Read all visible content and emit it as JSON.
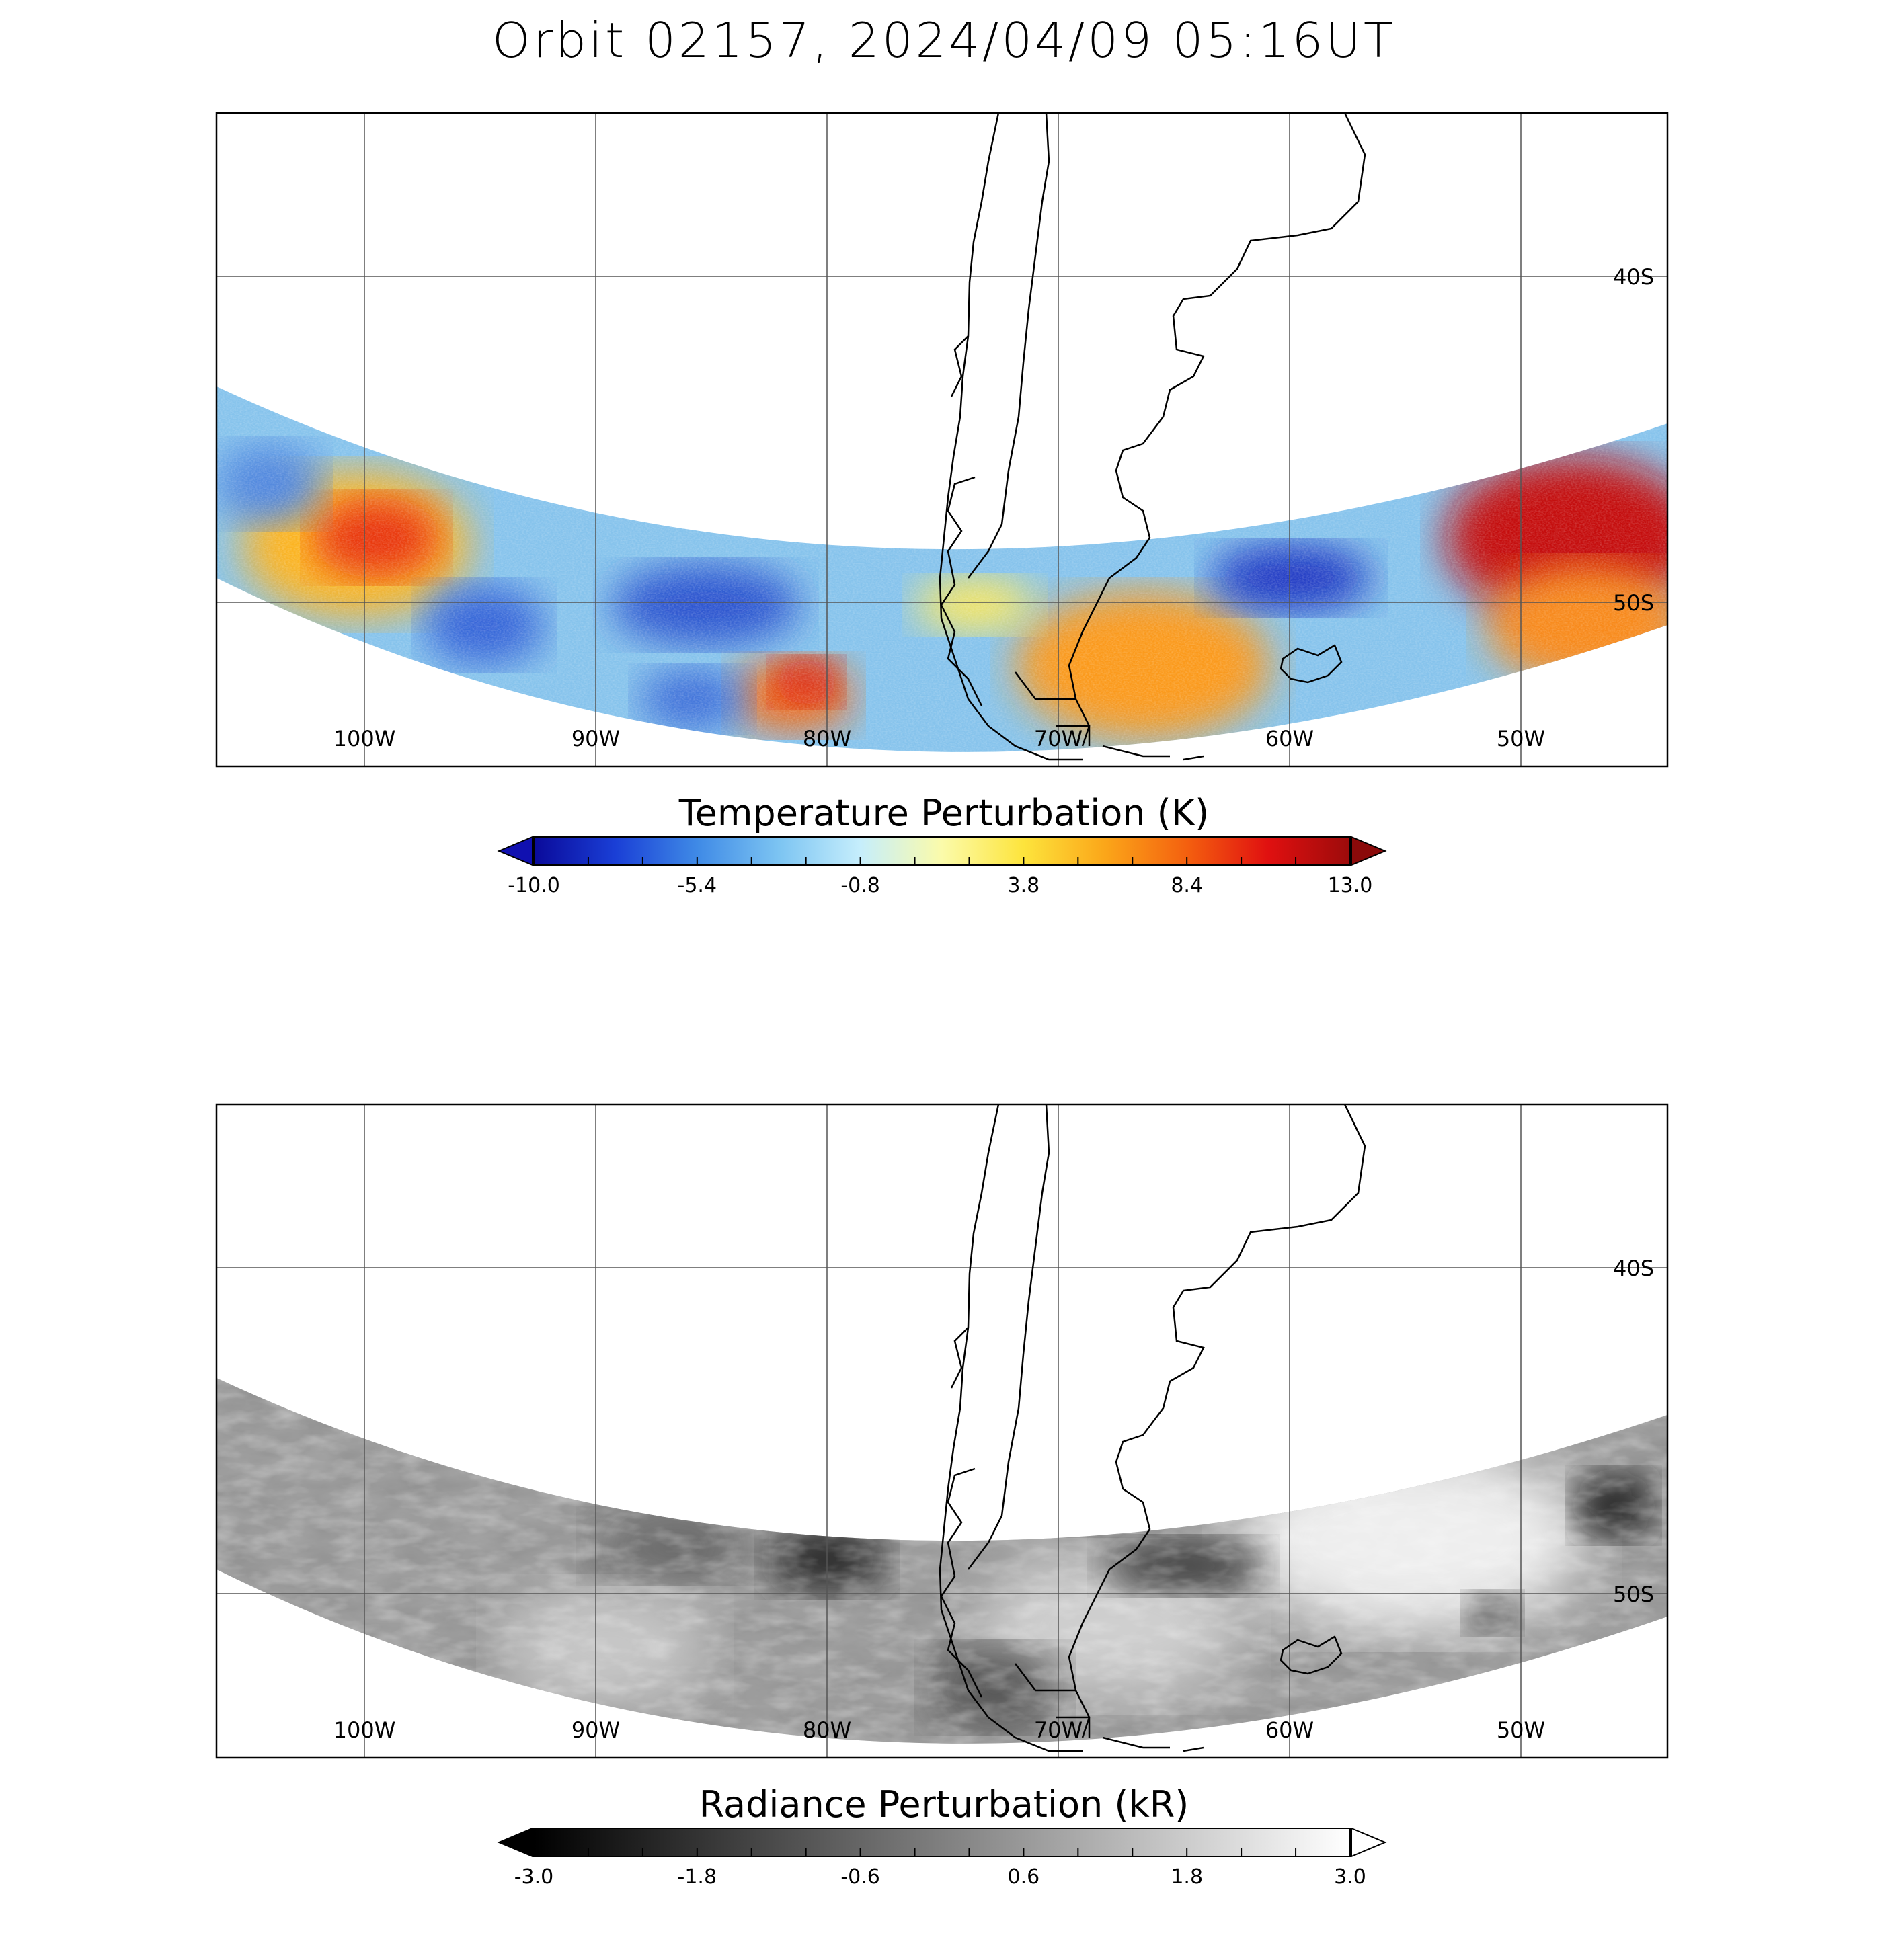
{
  "title": "Orbit 02157, 2024/04/09 05:16UT",
  "panels": [
    {
      "id": "temperature",
      "lon_labels": [
        "100W",
        "90W",
        "80W",
        "70W",
        "60W",
        "50W"
      ],
      "lat_labels": [
        "40S",
        "50S"
      ],
      "colorbar": {
        "title": "Temperature Perturbation (K)",
        "tick_labels": [
          "-10.0",
          "-5.4",
          "-0.8",
          "3.8",
          "8.4",
          "13.0"
        ],
        "range": [
          -10.0,
          13.0
        ],
        "colormap": [
          "#0a0a9a",
          "#1a3fd6",
          "#3f8ae6",
          "#7cc4f2",
          "#c6eefc",
          "#fbfbaa",
          "#fde43c",
          "#fba619",
          "#f4600f",
          "#e01010",
          "#9c0b0b"
        ],
        "low_arrow_color": "#1010b0",
        "high_arrow_color": "#8b0a0a"
      }
    },
    {
      "id": "radiance",
      "lon_labels": [
        "100W",
        "90W",
        "80W",
        "70W",
        "60W",
        "50W"
      ],
      "lat_labels": [
        "40S",
        "50S"
      ],
      "colorbar": {
        "title": "Radiance Perturbation (kR)",
        "tick_labels": [
          "-3.0",
          "-1.8",
          "-0.6",
          "0.6",
          "1.8",
          "3.0"
        ],
        "range": [
          -3.0,
          3.0
        ],
        "colormap": [
          "#000000",
          "#ffffff"
        ],
        "low_arrow_color": "#000000",
        "high_arrow_color": "#ffffff"
      }
    }
  ]
}
